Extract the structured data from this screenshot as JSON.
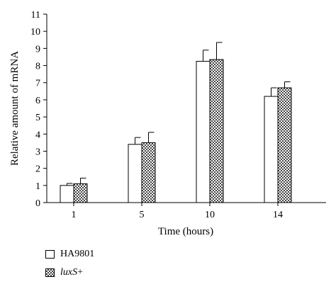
{
  "chart_data": {
    "type": "bar",
    "categories": [
      "1",
      "5",
      "10",
      "14"
    ],
    "series": [
      {
        "name": "HA9801",
        "values": [
          1.0,
          3.4,
          8.25,
          6.2
        ],
        "errors": [
          0.12,
          0.4,
          0.65,
          0.5
        ],
        "color": "#ffffff",
        "pattern": "none"
      },
      {
        "name": "luxS+",
        "values": [
          1.1,
          3.5,
          8.35,
          6.7
        ],
        "errors": [
          0.33,
          0.6,
          1.0,
          0.35
        ],
        "color": "#555555",
        "pattern": "checkered"
      }
    ],
    "y_ticks": [
      "0",
      "1",
      "2",
      "3",
      "4",
      "5",
      "6",
      "7",
      "8",
      "9",
      "10",
      "11"
    ],
    "ylim": [
      0,
      11
    ],
    "xlabel": "Time (hours)",
    "ylabel": "Relative amount of mRNA",
    "grid": false,
    "legend": {
      "placement": "bottom-left",
      "items": [
        {
          "label": "HA9801",
          "swatch": "open"
        },
        {
          "label_prefix": "luxS",
          "label_suffix": "+",
          "swatch": "checkered"
        }
      ]
    }
  }
}
